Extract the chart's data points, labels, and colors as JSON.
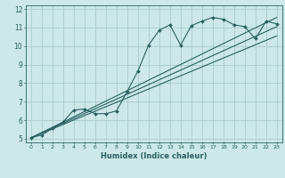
{
  "xlabel": "Humidex (Indice chaleur)",
  "ylabel": "",
  "xlim": [
    -0.5,
    23.5
  ],
  "ylim": [
    4.8,
    12.2
  ],
  "xticks": [
    0,
    1,
    2,
    3,
    4,
    5,
    6,
    7,
    8,
    9,
    10,
    11,
    12,
    13,
    14,
    15,
    16,
    17,
    18,
    19,
    20,
    21,
    22,
    23
  ],
  "yticks": [
    5,
    6,
    7,
    8,
    9,
    10,
    11,
    12
  ],
  "bg_color": "#cce8e8",
  "grid_color": "#aacccc",
  "line_color": "#2a6060",
  "line1_x": [
    0,
    1,
    2,
    3,
    4,
    5,
    6,
    7,
    8,
    9,
    10,
    11,
    12,
    13,
    14,
    15,
    16,
    17,
    18,
    19,
    20,
    21,
    22,
    23
  ],
  "line1_y": [
    5.05,
    5.2,
    5.55,
    5.9,
    6.55,
    6.6,
    6.35,
    6.35,
    6.5,
    7.55,
    8.65,
    10.05,
    10.85,
    11.15,
    10.05,
    11.1,
    11.35,
    11.55,
    11.45,
    11.15,
    11.05,
    10.4,
    11.35,
    11.2
  ],
  "line2_x": [
    0,
    23
  ],
  "line2_y": [
    5.05,
    11.55
  ],
  "line3_x": [
    0,
    23
  ],
  "line3_y": [
    5.05,
    10.55
  ],
  "line4_x": [
    0,
    23
  ],
  "line4_y": [
    5.05,
    11.05
  ]
}
